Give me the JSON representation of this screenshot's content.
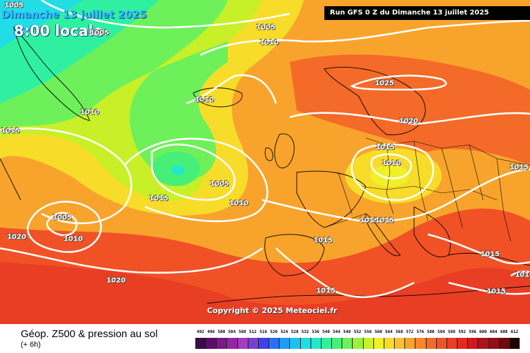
{
  "header": {
    "date": "Dimanche 13 juillet 2025",
    "time": "8:00 locale",
    "run_info": "Run GFS 0 Z du Dimanche 13 juillet 2025"
  },
  "copyright": "Copyright © 2025 Meteociel.fr",
  "isobar_labels": [
    "1005",
    "1005",
    "1010",
    "1010",
    "1015",
    "1010",
    "1015",
    "1005",
    "1015",
    "1010",
    "1005",
    "1020",
    "1010",
    "1020",
    "1025",
    "1020",
    "1015",
    "1010",
    "1015",
    "1015",
    "1015",
    "1015",
    "1015",
    "1015",
    "1010",
    "1005"
  ],
  "footer": {
    "title": "Géop. Z500 & pression au sol",
    "subtitle": "(+ 6h)"
  },
  "legend": {
    "labels": [
      "492",
      "496",
      "500",
      "504",
      "508",
      "512",
      "516",
      "520",
      "524",
      "528",
      "532",
      "536",
      "540",
      "544",
      "548",
      "552",
      "556",
      "560",
      "564",
      "568",
      "572",
      "576",
      "580",
      "584",
      "588",
      "592",
      "596",
      "600",
      "604",
      "608",
      "612"
    ],
    "colors": [
      "#3d0a4a",
      "#5a0f6a",
      "#7a1888",
      "#9426a6",
      "#a43cc2",
      "#7a3fd0",
      "#3f3ff0",
      "#2a6ef6",
      "#1e9cf4",
      "#1cc2ee",
      "#22dce6",
      "#26e8c8",
      "#2ff0a0",
      "#46f078",
      "#6ef05a",
      "#9cf03a",
      "#c8f028",
      "#f0f028",
      "#f8dc2a",
      "#f8c02c",
      "#f8a42c",
      "#f8862a",
      "#f46a28",
      "#f05226",
      "#e83e24",
      "#e02a22",
      "#cc1a1e",
      "#b0121a",
      "#901016",
      "#6a0c12",
      "#200404"
    ]
  }
}
